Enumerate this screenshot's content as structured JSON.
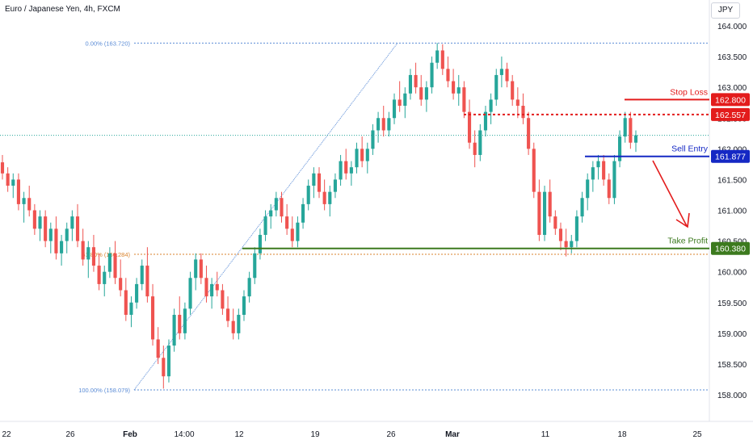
{
  "header": {
    "title": "Euro / Japanese Yen, 4h, FXCM",
    "currency": "JPY"
  },
  "colors": {
    "up": "#26a69a",
    "down": "#ef5350",
    "stop_loss": "#e31c1c",
    "sell_entry": "#1528c4",
    "take_profit": "#3c7a1e",
    "fib_blue": "#5b8cd6",
    "fib_orange": "#d9822b",
    "grid_text": "#131722"
  },
  "chart_data": {
    "type": "candlestick",
    "y_axis": {
      "ticks": [
        "164.000",
        "163.500",
        "163.000",
        "162.500",
        "162.000",
        "161.500",
        "161.000",
        "160.500",
        "160.000",
        "159.500",
        "159.000",
        "158.500",
        "158.000"
      ],
      "ylim": [
        157.6,
        164.2
      ]
    },
    "x_axis": {
      "ticks": [
        "22",
        "26",
        "Feb",
        "14:00",
        "12",
        "19",
        "26",
        "Mar",
        "11",
        "18",
        "25"
      ]
    },
    "price_line": 162.22,
    "candles_ohlc": [
      [
        161.78,
        161.9,
        161.5,
        161.6
      ],
      [
        161.6,
        161.7,
        161.3,
        161.4
      ],
      [
        161.4,
        161.6,
        161.2,
        161.5
      ],
      [
        161.5,
        161.6,
        161.0,
        161.1
      ],
      [
        161.1,
        161.3,
        160.8,
        161.2
      ],
      [
        161.2,
        161.4,
        160.9,
        161.0
      ],
      [
        161.0,
        161.1,
        160.6,
        160.7
      ],
      [
        160.7,
        161.0,
        160.5,
        160.9
      ],
      [
        160.9,
        161.0,
        160.4,
        160.5
      ],
      [
        160.5,
        160.8,
        160.3,
        160.7
      ],
      [
        160.7,
        160.9,
        160.2,
        160.3
      ],
      [
        160.3,
        160.6,
        160.1,
        160.5
      ],
      [
        160.5,
        160.8,
        160.3,
        160.7
      ],
      [
        160.7,
        161.0,
        160.5,
        160.9
      ],
      [
        160.9,
        161.1,
        160.4,
        160.5
      ],
      [
        160.5,
        160.7,
        160.1,
        160.2
      ],
      [
        160.2,
        160.5,
        159.9,
        160.4
      ],
      [
        160.4,
        160.6,
        160.0,
        160.1
      ],
      [
        160.1,
        160.3,
        159.7,
        159.8
      ],
      [
        159.8,
        160.1,
        159.6,
        160.0
      ],
      [
        160.0,
        160.4,
        159.9,
        160.3
      ],
      [
        160.3,
        160.5,
        159.8,
        159.9
      ],
      [
        159.9,
        160.2,
        159.6,
        159.7
      ],
      [
        159.7,
        159.9,
        159.2,
        159.3
      ],
      [
        159.3,
        159.6,
        159.1,
        159.5
      ],
      [
        159.5,
        159.9,
        159.4,
        159.8
      ],
      [
        159.8,
        160.2,
        159.7,
        160.1
      ],
      [
        160.1,
        160.4,
        159.5,
        159.6
      ],
      [
        159.6,
        159.8,
        158.8,
        158.9
      ],
      [
        158.9,
        159.1,
        158.5,
        158.6
      ],
      [
        158.6,
        158.8,
        158.1,
        158.3
      ],
      [
        158.3,
        158.9,
        158.2,
        158.8
      ],
      [
        158.8,
        159.4,
        158.7,
        159.3
      ],
      [
        159.3,
        159.6,
        158.9,
        159.0
      ],
      [
        159.0,
        159.5,
        158.9,
        159.4
      ],
      [
        159.4,
        160.0,
        159.3,
        159.9
      ],
      [
        159.9,
        160.3,
        159.7,
        160.2
      ],
      [
        160.2,
        160.3,
        159.8,
        159.9
      ],
      [
        159.9,
        160.1,
        159.5,
        159.6
      ],
      [
        159.6,
        159.9,
        159.4,
        159.8
      ],
      [
        159.8,
        160.0,
        159.6,
        159.7
      ],
      [
        159.7,
        159.8,
        159.3,
        159.4
      ],
      [
        159.4,
        159.6,
        159.1,
        159.2
      ],
      [
        159.2,
        159.4,
        158.9,
        159.0
      ],
      [
        159.0,
        159.4,
        158.9,
        159.3
      ],
      [
        159.3,
        159.7,
        159.2,
        159.6
      ],
      [
        159.6,
        160.0,
        159.5,
        159.9
      ],
      [
        159.9,
        160.4,
        159.8,
        160.3
      ],
      [
        160.3,
        160.7,
        160.2,
        160.6
      ],
      [
        160.6,
        161.0,
        160.5,
        160.9
      ],
      [
        160.9,
        161.1,
        160.7,
        161.0
      ],
      [
        161.0,
        161.3,
        160.9,
        161.2
      ],
      [
        161.2,
        161.3,
        160.8,
        160.9
      ],
      [
        160.9,
        161.1,
        160.6,
        160.7
      ],
      [
        160.7,
        160.9,
        160.4,
        160.5
      ],
      [
        160.5,
        160.9,
        160.4,
        160.8
      ],
      [
        160.8,
        161.2,
        160.7,
        161.1
      ],
      [
        161.1,
        161.5,
        161.0,
        161.4
      ],
      [
        161.4,
        161.7,
        161.2,
        161.6
      ],
      [
        161.6,
        161.7,
        161.2,
        161.3
      ],
      [
        161.3,
        161.5,
        161.0,
        161.1
      ],
      [
        161.1,
        161.4,
        160.9,
        161.3
      ],
      [
        161.3,
        161.6,
        161.2,
        161.5
      ],
      [
        161.5,
        161.9,
        161.4,
        161.8
      ],
      [
        161.8,
        162.0,
        161.5,
        161.6
      ],
      [
        161.6,
        161.8,
        161.4,
        161.7
      ],
      [
        161.7,
        162.1,
        161.6,
        162.0
      ],
      [
        162.0,
        162.2,
        161.7,
        161.8
      ],
      [
        161.8,
        162.1,
        161.6,
        162.0
      ],
      [
        162.0,
        162.4,
        161.9,
        162.3
      ],
      [
        162.3,
        162.6,
        162.1,
        162.5
      ],
      [
        162.5,
        162.7,
        162.2,
        162.3
      ],
      [
        162.3,
        162.6,
        162.2,
        162.5
      ],
      [
        162.5,
        162.9,
        162.4,
        162.8
      ],
      [
        162.8,
        163.1,
        162.6,
        162.7
      ],
      [
        162.7,
        163.0,
        162.5,
        162.9
      ],
      [
        162.9,
        163.3,
        162.8,
        163.2
      ],
      [
        163.2,
        163.4,
        162.9,
        163.0
      ],
      [
        163.0,
        163.2,
        162.7,
        162.8
      ],
      [
        162.8,
        163.1,
        162.6,
        163.0
      ],
      [
        163.0,
        163.5,
        162.9,
        163.4
      ],
      [
        163.4,
        163.72,
        163.3,
        163.6
      ],
      [
        163.6,
        163.7,
        163.2,
        163.3
      ],
      [
        163.3,
        163.5,
        163.0,
        163.1
      ],
      [
        163.1,
        163.3,
        162.8,
        162.9
      ],
      [
        162.9,
        163.2,
        162.7,
        163.0
      ],
      [
        163.0,
        163.1,
        162.5,
        162.6
      ],
      [
        162.6,
        162.8,
        162.0,
        162.1
      ],
      [
        162.1,
        162.3,
        161.7,
        161.9
      ],
      [
        161.9,
        162.4,
        161.8,
        162.3
      ],
      [
        162.3,
        162.7,
        162.2,
        162.6
      ],
      [
        162.6,
        162.9,
        162.4,
        162.8
      ],
      [
        162.8,
        163.3,
        162.7,
        163.2
      ],
      [
        163.2,
        163.5,
        163.0,
        163.3
      ],
      [
        163.3,
        163.4,
        163.0,
        163.1
      ],
      [
        163.1,
        163.2,
        162.7,
        162.8
      ],
      [
        162.8,
        163.0,
        162.5,
        162.7
      ],
      [
        162.7,
        162.9,
        162.4,
        162.5
      ],
      [
        162.5,
        162.6,
        161.9,
        162.0
      ],
      [
        162.0,
        162.1,
        161.2,
        161.3
      ],
      [
        161.3,
        161.5,
        160.5,
        160.6
      ],
      [
        160.6,
        161.4,
        160.5,
        161.3
      ],
      [
        161.3,
        161.5,
        160.8,
        160.9
      ],
      [
        160.9,
        161.0,
        160.6,
        160.7
      ],
      [
        160.7,
        160.8,
        160.35,
        160.5
      ],
      [
        160.5,
        160.7,
        160.25,
        160.4
      ],
      [
        160.4,
        160.6,
        160.3,
        160.5
      ],
      [
        160.5,
        161.0,
        160.4,
        160.9
      ],
      [
        160.9,
        161.3,
        160.8,
        161.2
      ],
      [
        161.2,
        161.6,
        161.0,
        161.5
      ],
      [
        161.5,
        161.8,
        161.3,
        161.7
      ],
      [
        161.7,
        161.9,
        161.5,
        161.8
      ],
      [
        161.8,
        161.9,
        161.4,
        161.5
      ],
      [
        161.5,
        161.6,
        161.1,
        161.2
      ],
      [
        161.2,
        161.9,
        161.1,
        161.8
      ],
      [
        161.8,
        162.3,
        161.7,
        162.2
      ],
      [
        162.2,
        162.6,
        162.1,
        162.5
      ],
      [
        162.5,
        162.6,
        162.0,
        162.1
      ],
      [
        162.1,
        162.3,
        161.95,
        162.22
      ]
    ],
    "annotations": {
      "stop_loss": {
        "label": "Stop Loss",
        "value_text": "162.800",
        "value": 162.8
      },
      "entry_dotted": {
        "value_text": "162.557",
        "value": 162.557
      },
      "sell_entry": {
        "label": "Sell Entry",
        "value_text": "161.877",
        "value": 161.877
      },
      "take_profit": {
        "label": "Take Profit",
        "value_text": "160.380",
        "value": 160.38
      },
      "fib_0": {
        "label": "0.00% (163.720)",
        "value": 163.72
      },
      "fib_618": {
        "label": "61.80% (160.284)",
        "value": 160.284
      },
      "fib_100": {
        "label": "100.00% (158.079)",
        "value": 158.079
      }
    }
  }
}
